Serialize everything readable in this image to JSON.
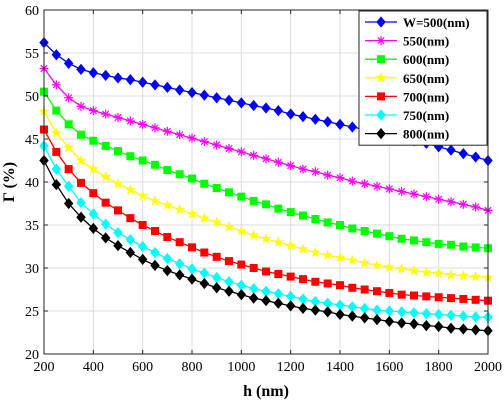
{
  "chart_data": {
    "type": "line",
    "title": "",
    "xlabel": "h (nm)",
    "ylabel": "Γ (%)",
    "xlim": [
      200,
      2000
    ],
    "ylim": [
      20,
      60
    ],
    "xticks": [
      200,
      400,
      600,
      800,
      1000,
      1200,
      1400,
      1600,
      1800,
      2000
    ],
    "yticks": [
      20,
      25,
      30,
      35,
      40,
      45,
      50,
      55,
      60
    ],
    "grid": true,
    "legend_position": "top-right",
    "x": [
      200,
      250,
      300,
      350,
      400,
      450,
      500,
      550,
      600,
      650,
      700,
      750,
      800,
      850,
      900,
      950,
      1000,
      1050,
      1100,
      1150,
      1200,
      1250,
      1300,
      1350,
      1400,
      1450,
      1500,
      1550,
      1600,
      1650,
      1700,
      1750,
      1800,
      1850,
      1900,
      1950,
      2000
    ],
    "series": [
      {
        "name": "W=500(nm)",
        "color": "#0000ff",
        "marker": "diamond",
        "values": [
          56.2,
          54.8,
          53.8,
          53.1,
          52.7,
          52.4,
          52.1,
          51.9,
          51.6,
          51.3,
          51.0,
          50.7,
          50.4,
          50.1,
          49.8,
          49.5,
          49.2,
          48.9,
          48.6,
          48.3,
          47.9,
          47.6,
          47.3,
          47.0,
          46.7,
          46.4,
          46.1,
          45.8,
          45.5,
          45.2,
          44.8,
          44.5,
          44.1,
          43.7,
          43.3,
          42.9,
          42.5
        ]
      },
      {
        "name": "550(nm)",
        "color": "#ff00ff",
        "marker": "asterisk",
        "values": [
          53.2,
          51.3,
          49.8,
          48.8,
          48.3,
          47.9,
          47.5,
          47.1,
          46.7,
          46.3,
          45.9,
          45.5,
          45.1,
          44.7,
          44.3,
          43.9,
          43.5,
          43.1,
          42.7,
          42.3,
          41.9,
          41.5,
          41.2,
          40.8,
          40.5,
          40.1,
          39.8,
          39.5,
          39.2,
          38.9,
          38.6,
          38.3,
          38.0,
          37.7,
          37.4,
          37.1,
          36.7
        ]
      },
      {
        "name": "600(nm)",
        "color": "#00ff00",
        "marker": "square",
        "values": [
          50.5,
          48.3,
          46.7,
          45.5,
          44.8,
          44.2,
          43.6,
          43.0,
          42.5,
          42.0,
          41.4,
          40.9,
          40.4,
          39.8,
          39.3,
          38.8,
          38.3,
          37.8,
          37.4,
          36.9,
          36.5,
          36.1,
          35.7,
          35.3,
          35.0,
          34.6,
          34.3,
          34.0,
          33.7,
          33.4,
          33.2,
          33.0,
          32.8,
          32.7,
          32.5,
          32.4,
          32.3
        ]
      },
      {
        "name": "650(nm)",
        "color": "#ffff00",
        "marker": "star",
        "values": [
          48.2,
          45.7,
          44.0,
          42.5,
          41.5,
          40.6,
          39.8,
          39.1,
          38.4,
          37.8,
          37.3,
          36.8,
          36.3,
          35.8,
          35.3,
          34.8,
          34.3,
          33.8,
          33.4,
          33.0,
          32.6,
          32.2,
          31.8,
          31.5,
          31.2,
          30.9,
          30.6,
          30.3,
          30.1,
          29.9,
          29.7,
          29.5,
          29.4,
          29.2,
          29.1,
          29.0,
          28.9
        ]
      },
      {
        "name": "700(nm)",
        "color": "#ff0000",
        "marker": "square",
        "values": [
          46.1,
          43.5,
          41.5,
          39.9,
          38.7,
          37.6,
          36.7,
          35.8,
          35.0,
          34.3,
          33.6,
          33.0,
          32.4,
          31.8,
          31.3,
          30.8,
          30.4,
          30.0,
          29.6,
          29.3,
          29.0,
          28.7,
          28.4,
          28.2,
          28.0,
          27.7,
          27.5,
          27.3,
          27.1,
          26.9,
          26.8,
          26.7,
          26.6,
          26.5,
          26.4,
          26.3,
          26.2
        ]
      },
      {
        "name": "750(nm)",
        "color": "#00ffff",
        "marker": "diamond",
        "values": [
          44.2,
          41.5,
          39.5,
          37.6,
          36.3,
          35.1,
          34.1,
          33.3,
          32.5,
          31.8,
          31.1,
          30.5,
          29.9,
          29.4,
          28.9,
          28.4,
          28.0,
          27.6,
          27.3,
          27.0,
          26.7,
          26.4,
          26.1,
          25.9,
          25.7,
          25.5,
          25.3,
          25.1,
          25.0,
          24.9,
          24.8,
          24.7,
          24.6,
          24.5,
          24.4,
          24.3,
          24.3
        ]
      },
      {
        "name": "800(nm)",
        "color": "#000000",
        "marker": "diamond",
        "values": [
          42.5,
          39.7,
          37.5,
          35.9,
          34.6,
          33.5,
          32.6,
          31.8,
          31.0,
          30.3,
          29.7,
          29.2,
          28.7,
          28.2,
          27.7,
          27.3,
          26.9,
          26.5,
          26.2,
          25.9,
          25.6,
          25.3,
          25.1,
          24.9,
          24.6,
          24.4,
          24.2,
          24.0,
          23.8,
          23.6,
          23.5,
          23.3,
          23.2,
          23.0,
          22.9,
          22.8,
          22.7
        ]
      }
    ]
  }
}
